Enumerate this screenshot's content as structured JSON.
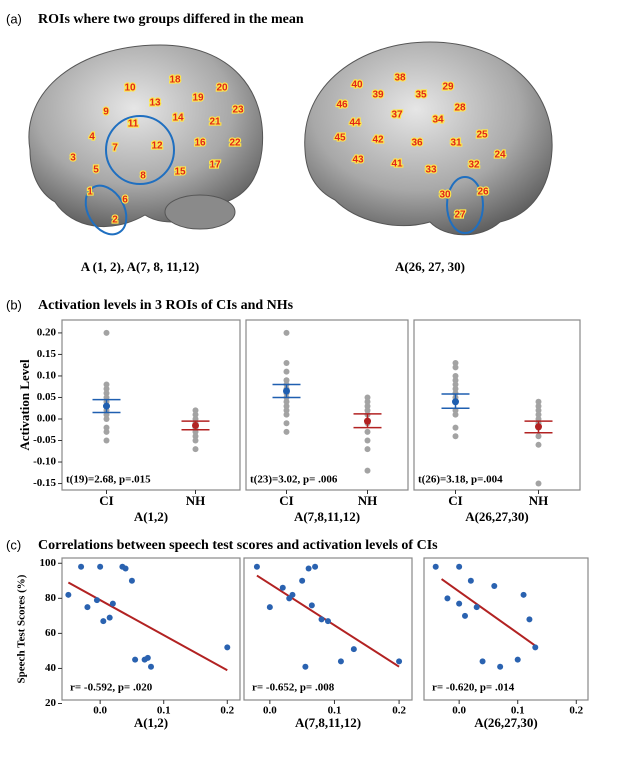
{
  "panel_a": {
    "label": "(a)",
    "title": "ROIs where two groups differed in the mean",
    "brains": [
      {
        "caption": "A (1, 2), A(7, 8, 11,12)",
        "rois": [
          "10",
          "18",
          "20",
          "13",
          "19",
          "9",
          "14",
          "23",
          "21",
          "11",
          "4",
          "7",
          "12",
          "16",
          "22",
          "3",
          "5",
          "15",
          "17",
          "8",
          "6",
          "1",
          "2"
        ]
      },
      {
        "caption": "A(26, 27, 30)",
        "rois": [
          "40",
          "38",
          "29",
          "39",
          "35",
          "46",
          "37",
          "28",
          "44",
          "34",
          "45",
          "42",
          "36",
          "31",
          "25",
          "43",
          "41",
          "33",
          "32",
          "24",
          "30",
          "26",
          "27"
        ]
      }
    ]
  },
  "panel_b": {
    "label": "(b)",
    "title": "Activation levels in 3 ROIs of CIs and NHs"
  },
  "panel_c": {
    "label": "(c)",
    "title": "Correlations between speech test scores and activation levels of CIs"
  },
  "chart_data": [
    {
      "type": "strip",
      "ylabel": "Activation Level",
      "xlabel": "A(1,2)",
      "annotation": "t(19)=2.68, p=.015",
      "categories": [
        "CI",
        "NH"
      ],
      "point_color": "#a3a3a3",
      "ylim": [
        -0.165,
        0.23
      ],
      "yticks": [
        {
          "value": 0.2,
          "label": "0.20"
        },
        0.15,
        {
          "value": 0.1,
          "label": "0.10"
        },
        0.05,
        {
          "value": 0,
          "label": "0.00"
        },
        -0.05,
        {
          "value": -0.1,
          "label": "-0.10"
        },
        -0.15
      ],
      "groups": [
        {
          "color": "#1f5fb0",
          "values": [
            0.2,
            0.08,
            0.07,
            0.06,
            0.05,
            0.04,
            0.03,
            0.02,
            0.01,
            0.0,
            -0.02,
            -0.03,
            -0.05
          ],
          "mean": 0.03,
          "ci": [
            0.015,
            0.045
          ]
        },
        {
          "color": "#b22222",
          "values": [
            0.02,
            0.01,
            0.0,
            -0.01,
            -0.02,
            -0.03,
            -0.04,
            -0.05,
            -0.07
          ],
          "mean": -0.015,
          "ci": [
            -0.025,
            -0.005
          ]
        }
      ]
    },
    {
      "type": "strip",
      "xlabel": "A(7,8,11,12)",
      "annotation": "t(23)=3.02, p= .006",
      "categories": [
        "CI",
        "NH"
      ],
      "point_color": "#a3a3a3",
      "ylim": [
        -0.165,
        0.23
      ],
      "groups": [
        {
          "color": "#1f5fb0",
          "values": [
            0.2,
            0.13,
            0.11,
            0.09,
            0.08,
            0.07,
            0.06,
            0.05,
            0.04,
            0.03,
            0.02,
            0.01,
            -0.01,
            -0.03
          ],
          "mean": 0.065,
          "ci": [
            0.05,
            0.08
          ]
        },
        {
          "color": "#b22222",
          "values": [
            0.05,
            0.04,
            0.03,
            0.02,
            0.01,
            -0.01,
            -0.03,
            -0.05,
            -0.07,
            -0.12
          ],
          "mean": -0.005,
          "ci": [
            -0.02,
            0.012
          ]
        }
      ]
    },
    {
      "type": "strip",
      "xlabel": "A(26,27,30)",
      "annotation": "t(26)=3.18, p=.004",
      "categories": [
        "CI",
        "NH"
      ],
      "point_color": "#a3a3a3",
      "ylim": [
        -0.165,
        0.23
      ],
      "groups": [
        {
          "color": "#1f5fb0",
          "values": [
            0.13,
            0.12,
            0.1,
            0.09,
            0.08,
            0.07,
            0.06,
            0.05,
            0.04,
            0.02,
            0.01,
            -0.02,
            -0.04
          ],
          "mean": 0.04,
          "ci": [
            0.025,
            0.058
          ]
        },
        {
          "color": "#b22222",
          "values": [
            0.04,
            0.03,
            0.02,
            0.01,
            0.0,
            -0.01,
            -0.02,
            -0.04,
            -0.06,
            -0.15
          ],
          "mean": -0.018,
          "ci": [
            -0.032,
            -0.005
          ]
        }
      ]
    },
    {
      "type": "scatter",
      "ylabel": "Speech Test Scores (%)",
      "xlabel": "A(1,2)",
      "annotation": "r= -0.592, p= .020",
      "color": "#2a62b0",
      "line_color": "#b22222",
      "xlim": [
        -0.06,
        0.22
      ],
      "ylim": [
        22,
        103
      ],
      "xticks": [
        {
          "value": 0,
          "label": "0.0"
        },
        0.1,
        0.2
      ],
      "yticks": [
        20,
        40,
        60,
        80,
        100
      ],
      "x": [
        -0.05,
        -0.03,
        -0.02,
        0,
        -0.005,
        0.005,
        0.015,
        0.02,
        0.035,
        0.04,
        0.05,
        0.055,
        0.07,
        0.075,
        0.08,
        0.2
      ],
      "y": [
        82,
        98,
        75,
        98,
        79,
        67,
        69,
        77,
        98,
        97,
        90,
        45,
        45,
        46,
        41,
        52
      ],
      "fit": {
        "x": [
          -0.05,
          0.2
        ],
        "y": [
          89,
          39
        ]
      }
    },
    {
      "type": "scatter",
      "xlabel": "A(7,8,11,12)",
      "annotation": "r= -0.652, p= .008",
      "color": "#2a62b0",
      "line_color": "#b22222",
      "xlim": [
        -0.04,
        0.22
      ],
      "ylim": [
        22,
        103
      ],
      "xticks": [
        {
          "value": 0,
          "label": "0.0"
        },
        0.1,
        0.2
      ],
      "x": [
        -0.02,
        0,
        0.02,
        0.03,
        0.035,
        0.05,
        0.055,
        0.06,
        0.07,
        0.065,
        0.08,
        0.09,
        0.11,
        0.13,
        0.2
      ],
      "y": [
        98,
        75,
        86,
        80,
        82,
        90,
        41,
        97,
        98,
        76,
        68,
        67,
        44,
        51,
        44
      ],
      "fit": {
        "x": [
          -0.02,
          0.2
        ],
        "y": [
          93,
          41
        ]
      }
    },
    {
      "type": "scatter",
      "xlabel": "A(26,27,30)",
      "annotation": "r= -0.620, p= .014",
      "color": "#2a62b0",
      "line_color": "#b22222",
      "xlim": [
        -0.06,
        0.22
      ],
      "ylim": [
        22,
        103
      ],
      "xticks": [
        {
          "value": 0,
          "label": "0.0"
        },
        0.1,
        0.2
      ],
      "x": [
        -0.04,
        -0.02,
        0,
        0,
        0.01,
        0.02,
        0.03,
        0.04,
        0.06,
        0.07,
        0.1,
        0.11,
        0.12,
        0.13
      ],
      "y": [
        98,
        80,
        77,
        98,
        70,
        90,
        75,
        44,
        87,
        41,
        45,
        82,
        68,
        52
      ],
      "fit": {
        "x": [
          -0.03,
          0.13
        ],
        "y": [
          91,
          53
        ]
      }
    }
  ]
}
